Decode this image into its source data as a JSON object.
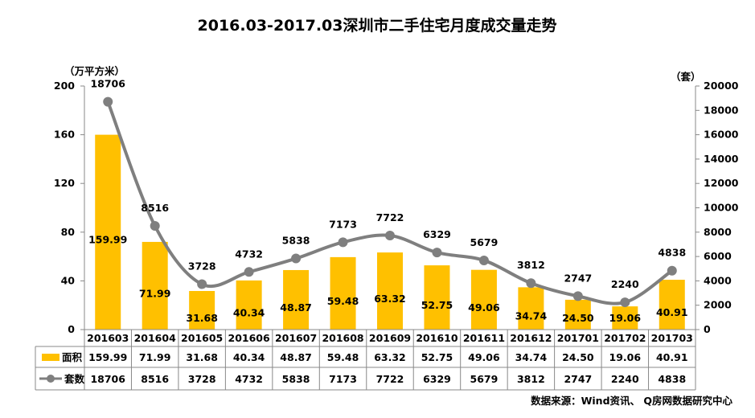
{
  "chart_data": {
    "type": "bar",
    "title": "2016.03-2017.03深圳市二手住宅月度成交量走势",
    "categories": [
      "201603",
      "201604",
      "201605",
      "201606",
      "201607",
      "201608",
      "201609",
      "201610",
      "201611",
      "201612",
      "201701",
      "201702",
      "201703"
    ],
    "y_left_unit": "（万平方米）",
    "y_right_unit": "（套）",
    "ylim_left": [
      0,
      200
    ],
    "ylim_right": [
      0,
      20000
    ],
    "yticks_left": [
      "0",
      "40",
      "80",
      "120",
      "160",
      "200"
    ],
    "yticks_right": [
      "0",
      "2000",
      "4000",
      "6000",
      "8000",
      "10000",
      "12000",
      "14000",
      "16000",
      "18000",
      "20000"
    ],
    "series": [
      {
        "name": "面积",
        "type": "bar",
        "axis": "left",
        "color": "#FFC000",
        "values": [
          159.99,
          71.99,
          31.68,
          40.34,
          48.87,
          59.48,
          63.32,
          52.75,
          49.06,
          34.74,
          24.5,
          19.06,
          40.91
        ],
        "labels": [
          "159.99",
          "71.99",
          "31.68",
          "40.34",
          "48.87",
          "59.48",
          "63.32",
          "52.75",
          "49.06",
          "34.74",
          "24.50",
          "19.06",
          "40.91"
        ]
      },
      {
        "name": "套数",
        "type": "line",
        "axis": "right",
        "color": "#7F7F7F",
        "values": [
          18706,
          8516,
          3728,
          4732,
          5838,
          7173,
          7722,
          6329,
          5679,
          3812,
          2747,
          2240,
          4838
        ],
        "labels": [
          "18706",
          "8516",
          "3728",
          "4732",
          "5838",
          "7173",
          "7722",
          "6329",
          "5679",
          "3812",
          "2747",
          "2240",
          "4838"
        ]
      }
    ],
    "legend_position": "data-table",
    "grid": false,
    "source": "数据来源：Wind资讯、 Q房网数据研究中心"
  }
}
